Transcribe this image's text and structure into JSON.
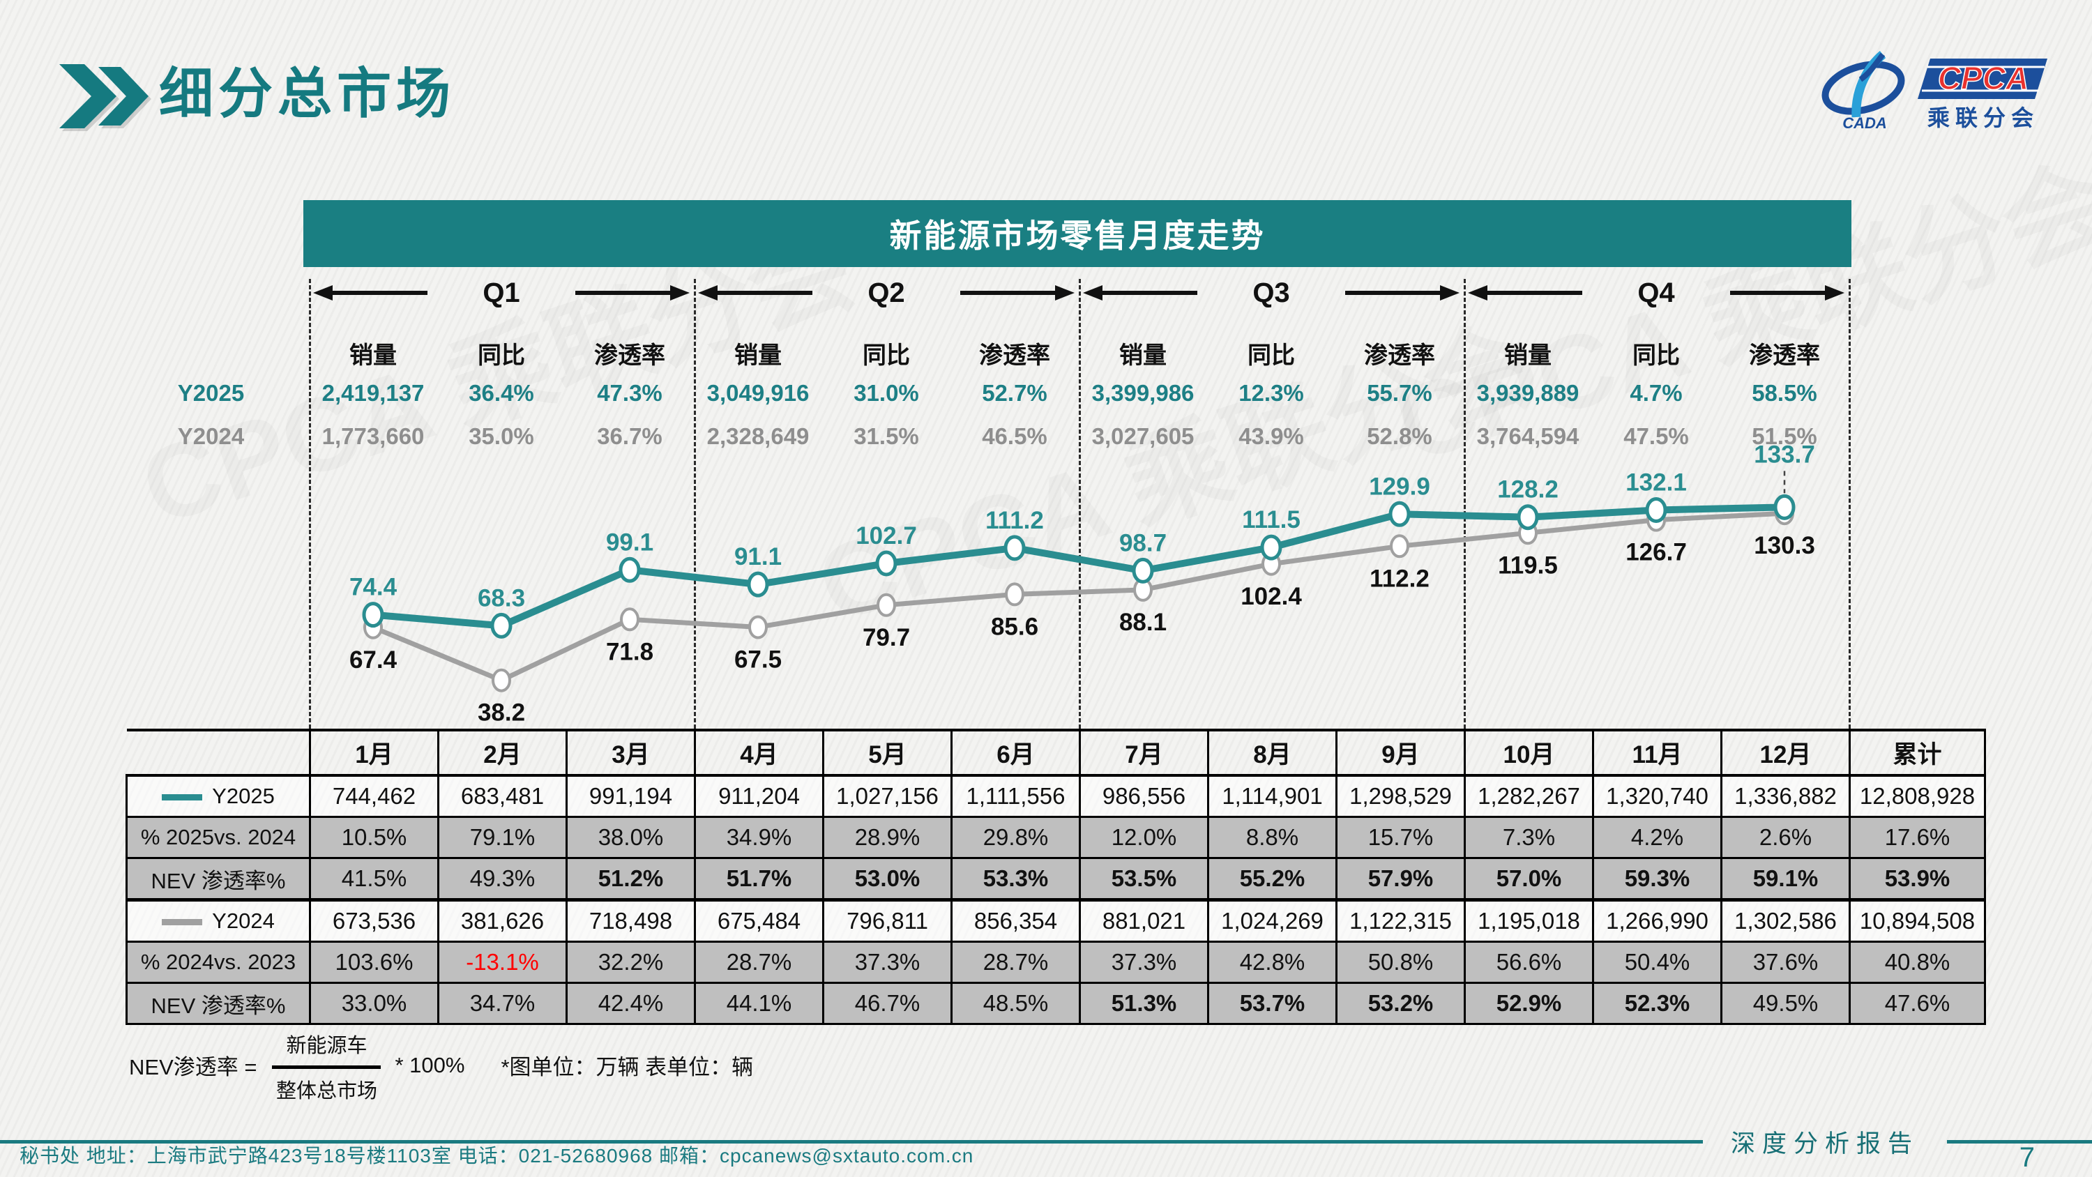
{
  "header": {
    "title": "细分总市场",
    "logo": {
      "mark_text": "CADA",
      "cpca_text": "CPCA",
      "subtitle": "乘联分会"
    }
  },
  "banner": {
    "title": "新能源市场零售月度走势"
  },
  "watermark": "CPCA 乘联分会",
  "colors": {
    "teal_accent": "#157a80",
    "banner_bg": "#1a7f82",
    "line_2025": "#2a8d90",
    "line_2024": "#a0a0a0",
    "teal_text": "#1d7f85",
    "gray_text": "#8e8e8e",
    "table_shade": "#bfbfbf",
    "negative_red": "#ff0000"
  },
  "stat_headers": [
    "销量",
    "同比",
    "渗透率"
  ],
  "quarters": [
    {
      "label": "Q1",
      "y2025": {
        "sales": "2,419,137",
        "yoy": "36.4%",
        "pen": "47.3%"
      },
      "y2024": {
        "sales": "1,773,660",
        "yoy": "35.0%",
        "pen": "36.7%"
      }
    },
    {
      "label": "Q2",
      "y2025": {
        "sales": "3,049,916",
        "yoy": "31.0%",
        "pen": "52.7%"
      },
      "y2024": {
        "sales": "2,328,649",
        "yoy": "31.5%",
        "pen": "46.5%"
      }
    },
    {
      "label": "Q3",
      "y2025": {
        "sales": "3,399,986",
        "yoy": "12.3%",
        "pen": "55.7%"
      },
      "y2024": {
        "sales": "3,027,605",
        "yoy": "43.9%",
        "pen": "52.8%"
      }
    },
    {
      "label": "Q4",
      "y2025": {
        "sales": "3,939,889",
        "yoy": "4.7%",
        "pen": "58.5%"
      },
      "y2024": {
        "sales": "3,764,594",
        "yoy": "47.5%",
        "pen": "51.5%"
      }
    }
  ],
  "chart_data": {
    "type": "line",
    "title": "新能源市场零售月度走势",
    "x": [
      "1月",
      "2月",
      "3月",
      "4月",
      "5月",
      "6月",
      "7月",
      "8月",
      "9月",
      "10月",
      "11月",
      "12月"
    ],
    "unit": "万辆",
    "ylim": [
      30,
      145
    ],
    "grid": "quarter dashed verticals",
    "legend_position": "table row labels",
    "series": [
      {
        "name": "Y2025",
        "color": "#2a8d90",
        "values": [
          74.4,
          68.3,
          99.1,
          91.1,
          102.7,
          111.2,
          98.7,
          111.5,
          129.9,
          128.2,
          132.1,
          133.7
        ]
      },
      {
        "name": "Y2024",
        "color": "#a0a0a0",
        "values": [
          67.4,
          38.2,
          71.8,
          67.5,
          79.7,
          85.6,
          88.1,
          102.4,
          112.2,
          119.5,
          126.7,
          130.3
        ]
      }
    ]
  },
  "table": {
    "columns": [
      "1月",
      "2月",
      "3月",
      "4月",
      "5月",
      "6月",
      "7月",
      "8月",
      "9月",
      "10月",
      "11月",
      "12月",
      "累计"
    ],
    "rows": [
      {
        "label": "Y2025",
        "swatch": "#2a8d90",
        "shade": false,
        "values": [
          "744,462",
          "683,481",
          "991,194",
          "911,204",
          "1,027,156",
          "1,111,556",
          "986,556",
          "1,114,901",
          "1,298,529",
          "1,282,267",
          "1,320,740",
          "1,336,882",
          "12,808,928"
        ]
      },
      {
        "label": "% 2025vs. 2024",
        "shade": true,
        "values": [
          "10.5%",
          "79.1%",
          "38.0%",
          "34.9%",
          "28.9%",
          "29.8%",
          "12.0%",
          "8.8%",
          "15.7%",
          "7.3%",
          "4.2%",
          "2.6%",
          "17.6%"
        ]
      },
      {
        "label": "NEV 渗透率%",
        "shade": true,
        "bold_idx": [
          2,
          3,
          4,
          5,
          6,
          7,
          8,
          9,
          10,
          11,
          12
        ],
        "values": [
          "41.5%",
          "49.3%",
          "51.2%",
          "51.7%",
          "53.0%",
          "53.3%",
          "53.5%",
          "55.2%",
          "57.9%",
          "57.0%",
          "59.3%",
          "59.1%",
          "53.9%"
        ]
      },
      {
        "label": "Y2024",
        "swatch": "#a0a0a0",
        "shade": false,
        "thick_top": true,
        "values": [
          "673,536",
          "381,626",
          "718,498",
          "675,484",
          "796,811",
          "856,354",
          "881,021",
          "1,024,269",
          "1,122,315",
          "1,195,018",
          "1,266,990",
          "1,302,586",
          "10,894,508"
        ]
      },
      {
        "label": "% 2024vs. 2023",
        "shade": true,
        "red_idx": [
          1
        ],
        "values": [
          "103.6%",
          "-13.1%",
          "32.2%",
          "28.7%",
          "37.3%",
          "28.7%",
          "37.3%",
          "42.8%",
          "50.8%",
          "56.6%",
          "50.4%",
          "37.6%",
          "40.8%"
        ]
      },
      {
        "label": "NEV 渗透率%",
        "shade": true,
        "bold_idx": [
          6,
          7,
          8,
          9,
          10
        ],
        "values": [
          "33.0%",
          "34.7%",
          "42.4%",
          "44.1%",
          "46.7%",
          "48.5%",
          "51.3%",
          "53.7%",
          "53.2%",
          "52.9%",
          "52.3%",
          "49.5%",
          "47.6%"
        ]
      }
    ]
  },
  "footnote": {
    "label": "NEV渗透率 =",
    "numerator": "新能源车",
    "denominator": "整体总市场",
    "multiplier": "* 100%",
    "note": "*图单位：万辆    表单位：辆"
  },
  "footer": {
    "left": "秘书处   地址：上海市武宁路423号18号楼1103室  电话：021-52680968   邮箱：cpcanews@sxtauto.com.cn",
    "right_title": "深度分析报告",
    "page": "7"
  }
}
